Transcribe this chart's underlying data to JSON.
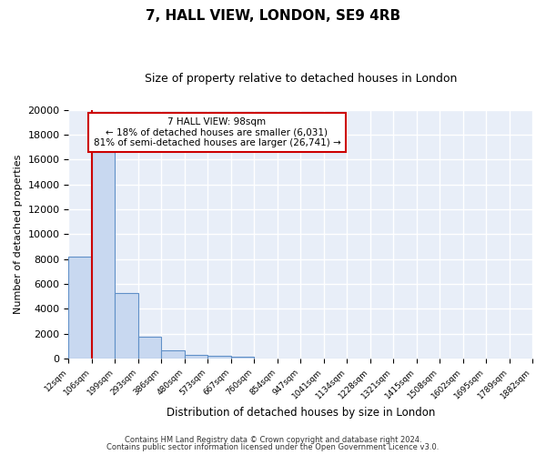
{
  "title": "7, HALL VIEW, LONDON, SE9 4RB",
  "subtitle": "Size of property relative to detached houses in London",
  "xlabel": "Distribution of detached houses by size in London",
  "ylabel": "Number of detached properties",
  "bar_heights": [
    8200,
    16600,
    5300,
    1800,
    700,
    300,
    200,
    150,
    0,
    0,
    0,
    0,
    0,
    0,
    0,
    0,
    0,
    0,
    0,
    0
  ],
  "tick_labels": [
    "12sqm",
    "106sqm",
    "199sqm",
    "293sqm",
    "386sqm",
    "480sqm",
    "573sqm",
    "667sqm",
    "760sqm",
    "854sqm",
    "947sqm",
    "1041sqm",
    "1134sqm",
    "1228sqm",
    "1321sqm",
    "1415sqm",
    "1508sqm",
    "1602sqm",
    "1695sqm",
    "1789sqm",
    "1882sqm"
  ],
  "bar_color": "#c8d8f0",
  "bar_edge_color": "#6090c8",
  "red_line_x": 1.0,
  "annotation_box_title": "7 HALL VIEW: 98sqm",
  "annotation_line1": "← 18% of detached houses are smaller (6,031)",
  "annotation_line2": "81% of semi-detached houses are larger (26,741) →",
  "ylim": [
    0,
    20000
  ],
  "yticks": [
    0,
    2000,
    4000,
    6000,
    8000,
    10000,
    12000,
    14000,
    16000,
    18000,
    20000
  ],
  "footer_line1": "Contains HM Land Registry data © Crown copyright and database right 2024.",
  "footer_line2": "Contains public sector information licensed under the Open Government Licence v3.0.",
  "plot_bg_color": "#e8eef8",
  "fig_bg_color": "#ffffff",
  "grid_color": "#ffffff",
  "annotation_box_color": "#ffffff",
  "annotation_box_edge_color": "#cc0000",
  "red_line_color": "#cc0000",
  "n_bins": 20
}
